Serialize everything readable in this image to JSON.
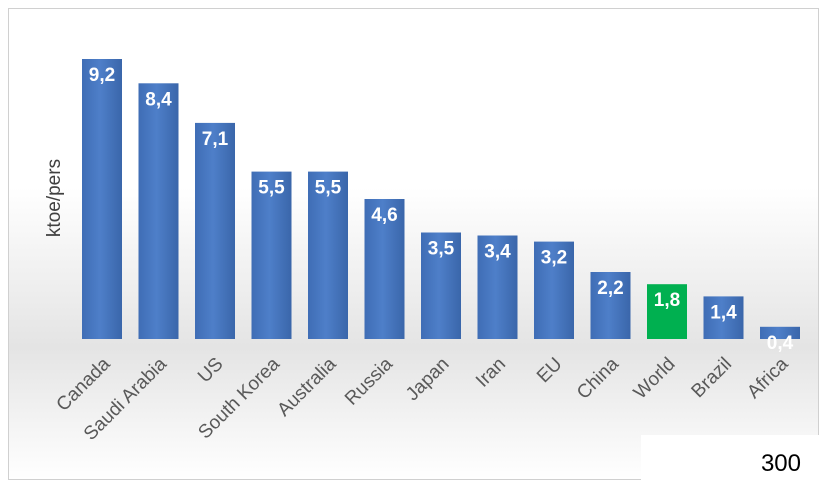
{
  "chart_data": {
    "type": "bar",
    "title": "",
    "xlabel": "",
    "ylabel": "ktoe/pers",
    "categories": [
      "Canada",
      "Saudi Arabia",
      "US",
      "South Korea",
      "Australia",
      "Russia",
      "Japan",
      "Iran",
      "EU",
      "China",
      "World",
      "Brazil",
      "Africa"
    ],
    "values": [
      9.2,
      8.4,
      7.1,
      5.5,
      5.5,
      4.6,
      3.5,
      3.4,
      3.2,
      2.2,
      1.8,
      1.4,
      0.4
    ],
    "data_labels": [
      "9,2",
      "8,4",
      "7,1",
      "5,5",
      "5,5",
      "4,6",
      "3,5",
      "3,4",
      "3,2",
      "2,2",
      "1,8",
      "1,4",
      "0,4"
    ],
    "ylim": [
      0,
      10
    ],
    "grid": false,
    "legend": "none",
    "bar_color": "#4472c4",
    "highlight_category": "World",
    "highlight_color": "#00b050"
  },
  "page_number": "300"
}
